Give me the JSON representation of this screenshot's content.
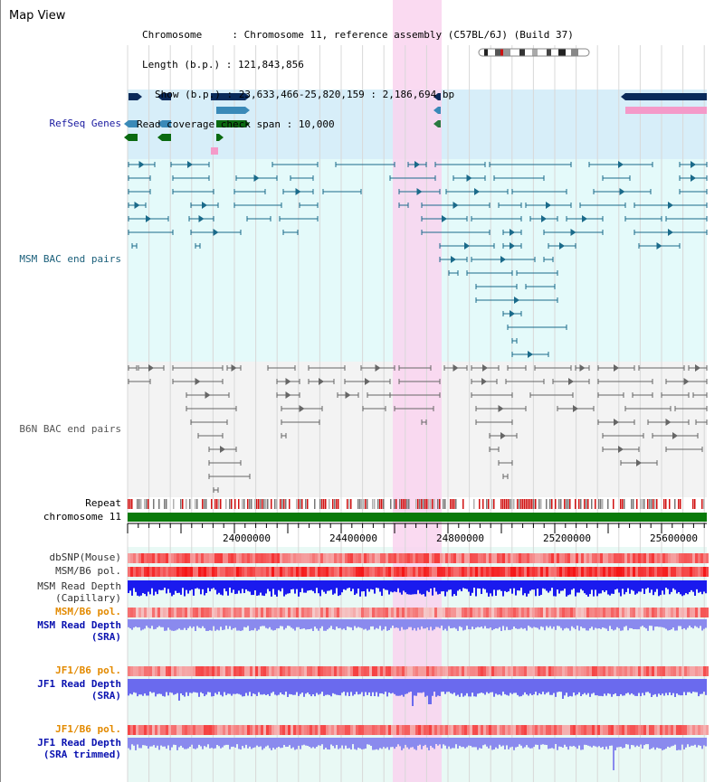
{
  "view_title": "Map View",
  "info": {
    "chromosome_label": "Chromosome",
    "chromosome_value": "Chromosome 11, reference assembly (C57BL/6J) (Build 37)",
    "length_label": "Length (b.p.)",
    "length_value": "121,843,856",
    "show_label": "Show (b.p.)",
    "show_value": "23,633,466-25,820,159 : 2,186,694 bp",
    "coverage_label": "Read coverage check span",
    "coverage_value": "10,000"
  },
  "tracks": {
    "refseq": "RefSeq Genes",
    "msm_bac": "MSM BAC end pairs",
    "b6n_bac": "B6N BAC end pairs",
    "repeat": "Repeat",
    "chromosome": "chromosome 11",
    "dbsnp": "dbSNP(Mouse)",
    "msm_b6_pol": "MSM/B6 pol.",
    "msm_read_depth_cap_1": "MSM Read Depth",
    "msm_read_depth_cap_2": "(Capillary)",
    "msm_b6_pol_2": "MSM/B6 pol.",
    "msm_read_depth_sra_1": "MSM Read Depth",
    "msm_read_depth_sra_2": "(SRA)",
    "jf1_b6_pol": "JF1/B6 pol.",
    "jf1_read_depth_sra_1": "JF1 Read Depth",
    "jf1_read_depth_sra_2": "(SRA)",
    "jf1_b6_pol_2": "JF1/B6 pol.",
    "jf1_read_depth_trim_1": "JF1 Read Depth",
    "jf1_read_depth_trim_2": "(SRA trimmed)"
  },
  "axis": {
    "ticks": [
      "24000000",
      "24400000",
      "24800000",
      "25200000",
      "25600000"
    ]
  },
  "colors": {
    "highlight": "#f9d4ee",
    "refseq_bg": "#d7eef9",
    "msm_bg": "#e4fafa",
    "b6n_bg": "#f3f3f3",
    "navy": "#0a2a5a",
    "pink_gene": "#f49ac9",
    "teal": "#1a6a8a",
    "green_gene": "#0a6a10",
    "chromosome_bar": "#0a7a0a",
    "depth_blue": "#1a1aee",
    "depth_light": "#8a8aee"
  }
}
